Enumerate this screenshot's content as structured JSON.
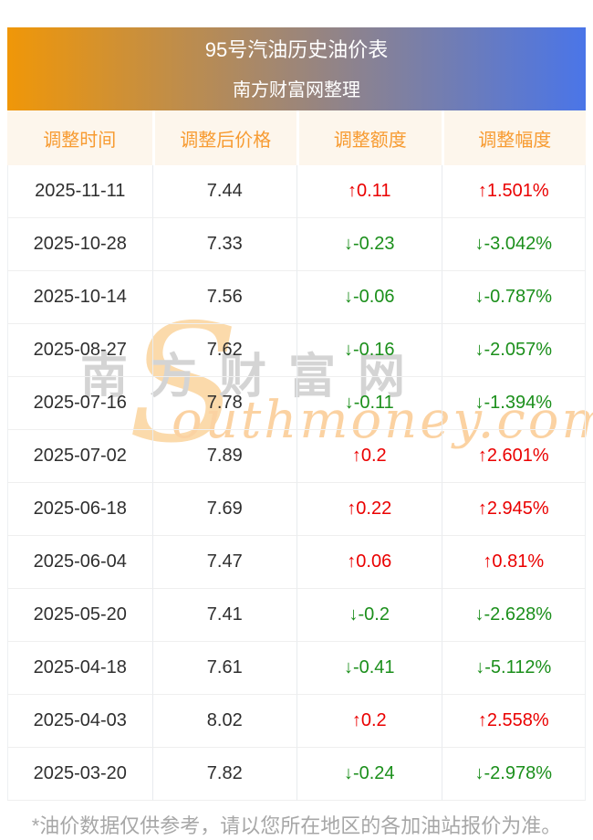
{
  "chart_data": {
    "type": "table",
    "title": "95号汽油历史油价表",
    "subtitle": "南方财富网整理",
    "columns": [
      "调整时间",
      "调整后价格",
      "调整额度",
      "调整幅度"
    ],
    "rows": [
      {
        "date": "2025-11-11",
        "price": "7.44",
        "change": "↑0.11",
        "change_pct": "↑1.501%",
        "direction": "up"
      },
      {
        "date": "2025-10-28",
        "price": "7.33",
        "change": "↓-0.23",
        "change_pct": "↓-3.042%",
        "direction": "down"
      },
      {
        "date": "2025-10-14",
        "price": "7.56",
        "change": "↓-0.06",
        "change_pct": "↓-0.787%",
        "direction": "down"
      },
      {
        "date": "2025-08-27",
        "price": "7.62",
        "change": "↓-0.16",
        "change_pct": "↓-2.057%",
        "direction": "down"
      },
      {
        "date": "2025-07-16",
        "price": "7.78",
        "change": "↓-0.11",
        "change_pct": "↓-1.394%",
        "direction": "down"
      },
      {
        "date": "2025-07-02",
        "price": "7.89",
        "change": "↑0.2",
        "change_pct": "↑2.601%",
        "direction": "up"
      },
      {
        "date": "2025-06-18",
        "price": "7.69",
        "change": "↑0.22",
        "change_pct": "↑2.945%",
        "direction": "up"
      },
      {
        "date": "2025-06-04",
        "price": "7.47",
        "change": "↑0.06",
        "change_pct": "↑0.81%",
        "direction": "up"
      },
      {
        "date": "2025-05-20",
        "price": "7.41",
        "change": "↓-0.2",
        "change_pct": "↓-2.628%",
        "direction": "down"
      },
      {
        "date": "2025-04-18",
        "price": "7.61",
        "change": "↓-0.41",
        "change_pct": "↓-5.112%",
        "direction": "down"
      },
      {
        "date": "2025-04-03",
        "price": "8.02",
        "change": "↑0.2",
        "change_pct": "↑2.558%",
        "direction": "up"
      },
      {
        "date": "2025-03-20",
        "price": "7.82",
        "change": "↓-0.24",
        "change_pct": "↓-2.978%",
        "direction": "down"
      }
    ]
  },
  "watermark": {
    "cn": "南方财富网",
    "en_initial": "S",
    "en_rest": "outhmoney.com"
  },
  "footer": {
    "note": "*油价数据仅供参考，请以您所在地区的各加油站报价为准。"
  },
  "colors": {
    "grad_left": "#f09708",
    "grad_right": "#4a75e8",
    "header_bg": "#fdf6ec",
    "header_text": "#f79b31",
    "up": "#ea0000",
    "down": "#1b8f1b"
  }
}
